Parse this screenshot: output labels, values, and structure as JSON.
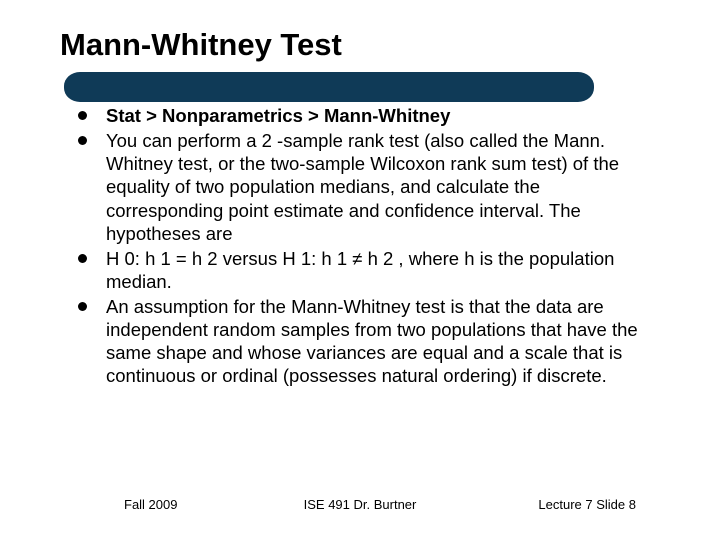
{
  "colors": {
    "title_bar": "#0f3a57",
    "background": "#ffffff",
    "text": "#000000",
    "bullet": "#000000"
  },
  "typography": {
    "title_fontsize": 31,
    "title_weight": "bold",
    "body_fontsize": 18.5,
    "footer_fontsize": 13,
    "font_family": "Arial"
  },
  "layout": {
    "slide_width": 720,
    "slide_height": 540,
    "title_bar_width": 530,
    "title_bar_height": 30,
    "title_bar_radius": 15
  },
  "title": "Mann-Whitney Test",
  "bullets": [
    {
      "text": "Stat > Nonparametrics > Mann-Whitney",
      "bold": true
    },
    {
      "text": "You can perform a 2 -sample rank test (also called the Mann. Whitney test, or the two-sample Wilcoxon rank sum test) of the equality of two population medians, and calculate the corresponding point estimate and confidence interval. The hypotheses are",
      "bold": false
    },
    {
      "text": "H 0: h 1 = h 2 versus H 1: h 1 ≠ h 2 , where h is the population median.",
      "bold": false
    },
    {
      "text": "An assumption for the Mann-Whitney test is that the data are independent random samples from two populations that have the same shape and whose variances are equal and a scale that is continuous or ordinal (possesses natural ordering) if discrete.",
      "bold": false
    }
  ],
  "footer": {
    "left": "Fall 2009",
    "center": "ISE 491  Dr. Burtner",
    "right": "Lecture 7   Slide 8"
  }
}
